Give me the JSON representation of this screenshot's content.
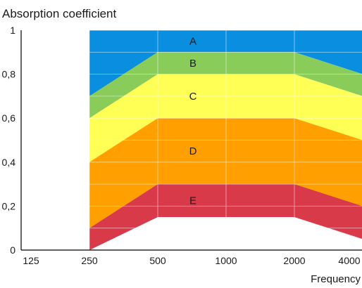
{
  "chart_data": {
    "type": "area",
    "title": "",
    "ylabel": "Absorption coefficient",
    "xlabel": "Frequency",
    "x_scale": "log2",
    "xticks": [
      "125",
      "250",
      "500",
      "1000",
      "2000",
      "4000"
    ],
    "x": [
      250,
      500,
      2000,
      4000
    ],
    "ylim": [
      0,
      1
    ],
    "yticks": [
      "0",
      "0,2",
      "0,4",
      "0,6",
      "0,8",
      "1"
    ],
    "grid": true,
    "bands": [
      {
        "name": "A",
        "lower": [
          0.7,
          0.9,
          0.9,
          0.8
        ],
        "upper": [
          1,
          1,
          1,
          1
        ],
        "color": "#0a8fe0"
      },
      {
        "name": "B",
        "lower": [
          0.6,
          0.8,
          0.8,
          0.7
        ],
        "upper": [
          0.7,
          0.9,
          0.9,
          0.8
        ],
        "color": "#8acc5a"
      },
      {
        "name": "C",
        "lower": [
          0.4,
          0.6,
          0.6,
          0.5
        ],
        "upper": [
          0.6,
          0.8,
          0.8,
          0.7
        ],
        "color": "#ffff55"
      },
      {
        "name": "D",
        "lower": [
          0.1,
          0.3,
          0.3,
          0.2
        ],
        "upper": [
          0.4,
          0.6,
          0.6,
          0.5
        ],
        "color": "#ffa000"
      },
      {
        "name": "E",
        "lower": [
          0.0,
          0.15,
          0.15,
          0.05
        ],
        "upper": [
          0.1,
          0.3,
          0.3,
          0.2
        ],
        "color": "#d93a4a"
      }
    ]
  }
}
